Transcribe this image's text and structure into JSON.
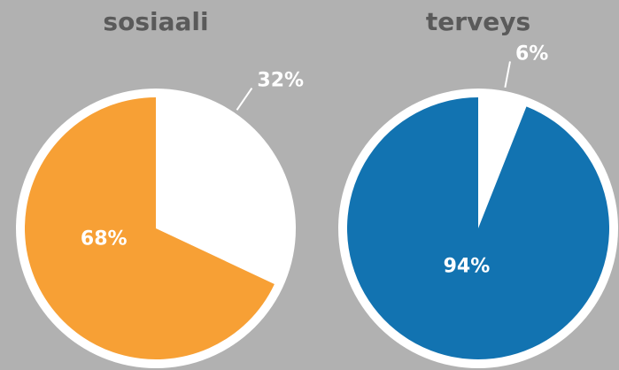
{
  "chart_data": [
    {
      "type": "pie",
      "title": "sosiaali",
      "values": [
        32,
        68
      ],
      "value_labels": [
        "32%",
        "68%"
      ],
      "colors": [
        "#ffffff",
        "#f7a035"
      ]
    },
    {
      "type": "pie",
      "title": "terveys",
      "values": [
        6,
        94
      ],
      "value_labels": [
        "6%",
        "94%"
      ],
      "colors": [
        "#ffffff",
        "#1273b1"
      ]
    }
  ]
}
